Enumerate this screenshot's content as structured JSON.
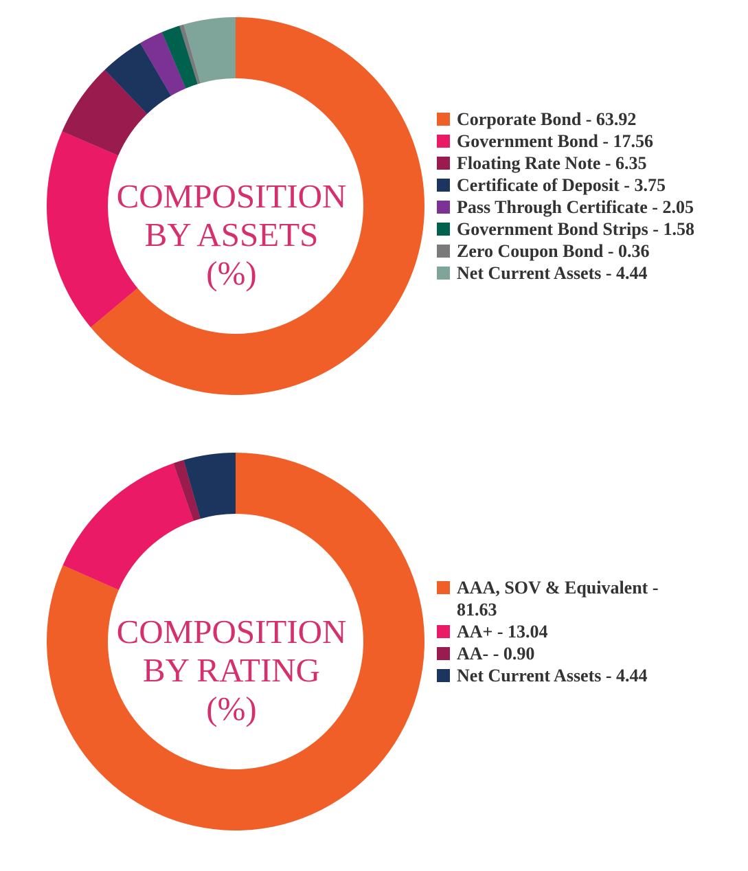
{
  "chart_data": [
    {
      "type": "pie",
      "title_lines": [
        "COMPOSITION",
        "BY ASSETS",
        "(%)"
      ],
      "slices": [
        {
          "label": "Corporate Bond - 63.92",
          "value": 63.92,
          "color": "#f05f28"
        },
        {
          "label": "Government Bond - 17.56",
          "value": 17.56,
          "color": "#eb1a66"
        },
        {
          "label": "Floating Rate Note - 6.35",
          "value": 6.35,
          "color": "#9a1c4e"
        },
        {
          "label": "Certificate of Deposit - 3.75",
          "value": 3.75,
          "color": "#1c355e"
        },
        {
          "label": "Pass Through Certificate - 2.05",
          "value": 2.05,
          "color": "#7b3294"
        },
        {
          "label": "Government Bond Strips - 1.58",
          "value": 1.58,
          "color": "#00614f"
        },
        {
          "label": "Zero Coupon Bond - 0.36",
          "value": 0.36,
          "color": "#7a7a7a"
        },
        {
          "label": "Net Current Assets - 4.44",
          "value": 4.44,
          "color": "#7fa49a"
        }
      ]
    },
    {
      "type": "pie",
      "title_lines": [
        "COMPOSITION",
        "BY RATING",
        "(%)"
      ],
      "slices": [
        {
          "label": "AAA, SOV & Equivalent - 81.63",
          "value": 81.63,
          "color": "#f05f28"
        },
        {
          "label": "AA+ - 13.04",
          "value": 13.04,
          "color": "#eb1a66"
        },
        {
          "label": "AA- - 0.90",
          "value": 0.9,
          "color": "#9a1c4e"
        },
        {
          "label": "Net Current Assets - 4.44",
          "value": 4.44,
          "color": "#1c355e"
        }
      ]
    }
  ]
}
